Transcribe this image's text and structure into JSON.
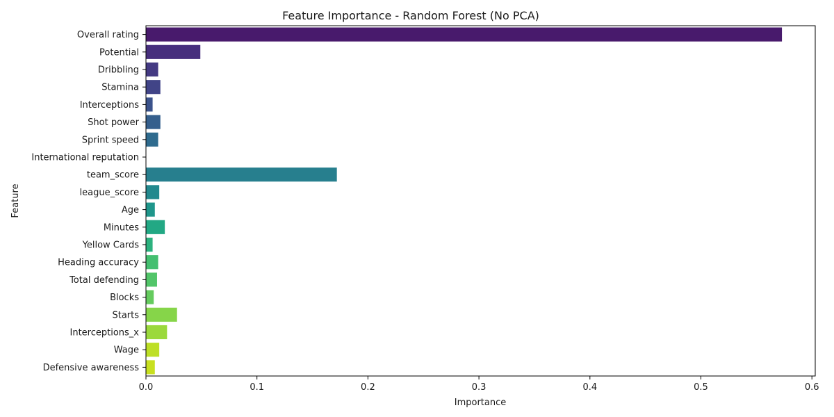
{
  "chart_data": {
    "type": "bar",
    "orientation": "horizontal",
    "title": "Feature Importance - Random Forest (No PCA)",
    "xlabel": "Importance",
    "ylabel": "Feature",
    "xlim": [
      0,
      0.603
    ],
    "xticks": [
      0.0,
      0.1,
      0.2,
      0.3,
      0.4,
      0.5,
      0.6
    ],
    "xtick_labels": [
      "0.0",
      "0.1",
      "0.2",
      "0.3",
      "0.4",
      "0.5",
      "0.6"
    ],
    "grid": false,
    "colormap": "viridis",
    "categories": [
      "Overall rating",
      "Potential",
      "Dribbling",
      "Stamina",
      "Interceptions",
      "Shot power",
      "Sprint speed",
      "International reputation",
      "team_score",
      "league_score",
      "Age",
      "Minutes",
      "Yellow Cards",
      "Heading accuracy",
      "Total defending",
      "Blocks",
      "Starts",
      "Interceptions_x",
      "Wage",
      "Defensive awareness"
    ],
    "values": [
      0.573,
      0.049,
      0.011,
      0.013,
      0.006,
      0.013,
      0.011,
      0.0,
      0.172,
      0.012,
      0.008,
      0.017,
      0.006,
      0.011,
      0.01,
      0.007,
      0.028,
      0.019,
      0.012,
      0.008
    ],
    "colors": [
      "#481a6c",
      "#472f7d",
      "#443a83",
      "#414487",
      "#3b528b",
      "#355f8d",
      "#2f6b8e",
      "#2a788e",
      "#277f8e",
      "#23898e",
      "#1f968b",
      "#22a884",
      "#2cb17e",
      "#44bf70",
      "#52c569",
      "#65cb5e",
      "#86d549",
      "#9bd93c",
      "#bddf26",
      "#c8e020"
    ]
  }
}
